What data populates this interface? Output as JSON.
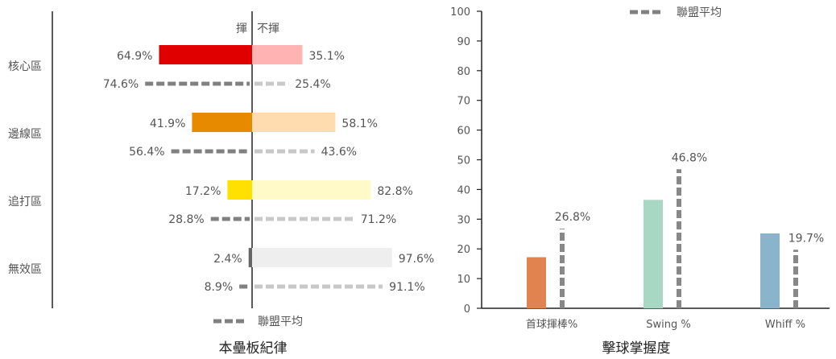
{
  "chart_data": [
    {
      "type": "bar",
      "title": "本壘板紀律",
      "header_swing": "揮",
      "header_take": "不揮",
      "legend_label": "聯盟平均",
      "zones": [
        {
          "name": "核心區",
          "swing": "64.9%",
          "take": "35.1%",
          "lg_swing": "74.6%",
          "lg_take": "25.4%",
          "swing_v": 64.9,
          "take_v": 35.1,
          "lg_swing_v": 74.6,
          "lg_take_v": 25.4,
          "swing_color": "#e00000",
          "take_color": "#ffb3b3"
        },
        {
          "name": "邊線區",
          "swing": "41.9%",
          "take": "58.1%",
          "lg_swing": "56.4%",
          "lg_take": "43.6%",
          "swing_v": 41.9,
          "take_v": 58.1,
          "lg_swing_v": 56.4,
          "lg_take_v": 43.6,
          "swing_color": "#e88a00",
          "take_color": "#ffdcb0"
        },
        {
          "name": "追打區",
          "swing": "17.2%",
          "take": "82.8%",
          "lg_swing": "28.8%",
          "lg_take": "71.2%",
          "swing_v": 17.2,
          "take_v": 82.8,
          "lg_swing_v": 28.8,
          "lg_take_v": 71.2,
          "swing_color": "#ffe000",
          "take_color": "#fffac8"
        },
        {
          "name": "無效區",
          "swing": "2.4%",
          "take": "97.6%",
          "lg_swing": "8.9%",
          "lg_take": "91.1%",
          "swing_v": 2.4,
          "take_v": 97.6,
          "lg_swing_v": 8.9,
          "lg_take_v": 91.1,
          "swing_color": "#666666",
          "take_color": "#eeeeee"
        }
      ]
    },
    {
      "type": "bar",
      "title": "擊球掌握度",
      "legend_label": "聯盟平均",
      "ylim": [
        0,
        100
      ],
      "yticks": [
        "0",
        "10",
        "20",
        "30",
        "40",
        "50",
        "60",
        "70",
        "80",
        "90",
        "100"
      ],
      "categories": [
        "首球揮棒%",
        "Swing %",
        "Whiff %"
      ],
      "values": [
        17.2,
        36.5,
        25.2
      ],
      "league_values": [
        26.8,
        46.8,
        19.7
      ],
      "league_labels": [
        "26.8%",
        "46.8%",
        "19.7%"
      ],
      "colors": [
        "#e0834f",
        "#a8d8c4",
        "#8ab4cc"
      ],
      "league_color": "#888888"
    }
  ]
}
